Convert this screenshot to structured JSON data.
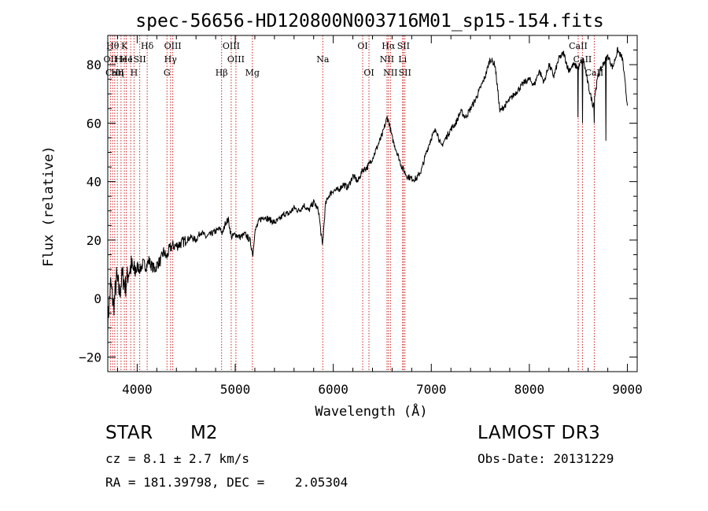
{
  "chart_data": {
    "type": "line",
    "title": "spec-56656-HD120800N003716M01_sp15-154.fits",
    "xlabel": "Wavelength (Å)",
    "ylabel": "Flux (relative)",
    "xlim": [
      3700,
      9100
    ],
    "ylim": [
      -25,
      90
    ],
    "xticks": [
      4000,
      5000,
      6000,
      7000,
      8000,
      9000
    ],
    "yticks": [
      -20,
      0,
      20,
      40,
      60,
      80
    ],
    "series": [
      {
        "name": "flux",
        "x": [
          3700,
          3730,
          3760,
          3790,
          3820,
          3850,
          3880,
          3910,
          3940,
          3970,
          4000,
          4030,
          4060,
          4090,
          4120,
          4150,
          4180,
          4210,
          4240,
          4270,
          4300,
          4330,
          4360,
          4400,
          4450,
          4500,
          4550,
          4600,
          4650,
          4700,
          4750,
          4800,
          4850,
          4870,
          4900,
          4930,
          4960,
          5000,
          5050,
          5100,
          5150,
          5180,
          5200,
          5250,
          5300,
          5350,
          5400,
          5450,
          5500,
          5550,
          5600,
          5650,
          5700,
          5750,
          5800,
          5850,
          5890,
          5920,
          5950,
          6000,
          6050,
          6100,
          6150,
          6200,
          6250,
          6300,
          6350,
          6400,
          6450,
          6500,
          6550,
          6570,
          6600,
          6650,
          6700,
          6750,
          6800,
          6850,
          6900,
          6950,
          7000,
          7050,
          7100,
          7150,
          7200,
          7250,
          7300,
          7350,
          7400,
          7450,
          7500,
          7550,
          7600,
          7650,
          7700,
          7750,
          7800,
          7850,
          7900,
          7950,
          8000,
          8050,
          8100,
          8150,
          8200,
          8250,
          8300,
          8350,
          8400,
          8450,
          8500,
          8550,
          8600,
          8650,
          8700,
          8750,
          8800,
          8850,
          8900,
          8950,
          9000
        ],
        "values": [
          -8,
          5,
          -3,
          7,
          2,
          8,
          4,
          9,
          11,
          9,
          11,
          10,
          12,
          11,
          13,
          11,
          10,
          12,
          13,
          16,
          14,
          17,
          18,
          18,
          19,
          20,
          21,
          20,
          23,
          21,
          22,
          23,
          24,
          22,
          26,
          27,
          21,
          22,
          21,
          22,
          20,
          15,
          23,
          27,
          28,
          27,
          26,
          27,
          29,
          29,
          31,
          30,
          32,
          30,
          33,
          30,
          18,
          32,
          35,
          37,
          37,
          39,
          38,
          42,
          40,
          44,
          45,
          48,
          52,
          56,
          62,
          60,
          55,
          50,
          45,
          42,
          41,
          41,
          44,
          50,
          55,
          58,
          52,
          55,
          58,
          60,
          64,
          62,
          65,
          68,
          72,
          76,
          82,
          80,
          64,
          66,
          68,
          70,
          72,
          74,
          75,
          73,
          78,
          74,
          80,
          76,
          82,
          84,
          78,
          80,
          79,
          82,
          73,
          66,
          76,
          80,
          83,
          79,
          85,
          82,
          66
        ],
        "spikes": [
          {
            "x": 8498,
            "value": 62
          },
          {
            "x": 8542,
            "value": 60
          },
          {
            "x": 8662,
            "value": 60
          },
          {
            "x": 8780,
            "value": 54
          }
        ]
      }
    ],
    "line_markers": [
      {
        "wavelength": 3727,
        "label": "OII",
        "row": 2
      },
      {
        "wavelength": 3750,
        "label": "Hθ",
        "row": 1
      },
      {
        "wavelength": 3771,
        "label": "CaII",
        "row": 3
      },
      {
        "wavelength": 3798,
        "label": "Hη",
        "row": 3
      },
      {
        "wavelength": 3835,
        "label": "He",
        "row": 2
      },
      {
        "wavelength": 3869,
        "label": "K",
        "row": 1
      },
      {
        "wavelength": 3889,
        "label": "He",
        "row": 2
      },
      {
        "wavelength": 3934,
        "label": "I",
        "row": 2
      },
      {
        "wavelength": 3968,
        "label": "H",
        "row": 3
      },
      {
        "wavelength": 4026,
        "label": "SII",
        "row": 2
      },
      {
        "wavelength": 4102,
        "label": "Hδ",
        "row": 1
      },
      {
        "wavelength": 4304,
        "label": "G",
        "row": 3
      },
      {
        "wavelength": 4340,
        "label": "Hγ",
        "row": 2
      },
      {
        "wavelength": 4363,
        "label": "OIII",
        "row": 1
      },
      {
        "wavelength": 4861,
        "label": "Hβ",
        "row": 3
      },
      {
        "wavelength": 4959,
        "label": "OIII",
        "row": 1
      },
      {
        "wavelength": 5007,
        "label": "OIII",
        "row": 2
      },
      {
        "wavelength": 5175,
        "label": "Mg",
        "row": 3
      },
      {
        "wavelength": 5893,
        "label": "Na",
        "row": 2
      },
      {
        "wavelength": 6300,
        "label": "OI",
        "row": 1
      },
      {
        "wavelength": 6364,
        "label": "OI",
        "row": 3
      },
      {
        "wavelength": 6548,
        "label": "NII",
        "row": 2
      },
      {
        "wavelength": 6563,
        "label": "Hα",
        "row": 1
      },
      {
        "wavelength": 6583,
        "label": "NII",
        "row": 3
      },
      {
        "wavelength": 6707,
        "label": "Li",
        "row": 2
      },
      {
        "wavelength": 6716,
        "label": "SII",
        "row": 1
      },
      {
        "wavelength": 6731,
        "label": "SII",
        "row": 3
      },
      {
        "wavelength": 8498,
        "label": "CaII",
        "row": 1
      },
      {
        "wavelength": 8542,
        "label": "CaII",
        "row": 2
      },
      {
        "wavelength": 8662,
        "label": "CaII",
        "row": 3
      }
    ],
    "colors": {
      "marker": "#cc2222",
      "axis": "#000000",
      "series": "#000000"
    }
  },
  "object": {
    "class": "STAR",
    "subclass": "M2"
  },
  "redshift_text": "cz = 8.1 ± 2.7 km/s",
  "coords_text": "RA = 181.39798, DEC =    2.05304",
  "survey": "LAMOST DR3",
  "obs_date_text": "Obs-Date: 20131229"
}
